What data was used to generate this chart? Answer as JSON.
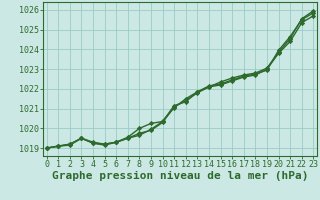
{
  "x_hours": [
    0,
    1,
    2,
    3,
    4,
    5,
    6,
    7,
    8,
    9,
    10,
    11,
    12,
    13,
    14,
    15,
    16,
    17,
    18,
    19,
    20,
    21,
    22,
    23
  ],
  "line1": [
    1019.0,
    1019.1,
    1019.15,
    1019.5,
    1019.25,
    1019.2,
    1019.3,
    1019.5,
    1019.75,
    1019.9,
    1020.3,
    1021.1,
    1021.4,
    1021.8,
    1022.1,
    1022.2,
    1022.4,
    1022.6,
    1022.7,
    1023.0,
    1023.8,
    1024.4,
    1025.35,
    1025.7
  ],
  "line2": [
    1019.0,
    1019.1,
    1019.2,
    1019.5,
    1019.25,
    1019.15,
    1019.3,
    1019.55,
    1020.0,
    1020.25,
    1020.35,
    1021.05,
    1021.5,
    1021.85,
    1022.1,
    1022.35,
    1022.55,
    1022.7,
    1022.8,
    1023.05,
    1023.85,
    1024.55,
    1025.55,
    1025.95
  ],
  "line3": [
    1019.0,
    1019.1,
    1019.2,
    1019.5,
    1019.3,
    1019.2,
    1019.3,
    1019.5,
    1019.65,
    1019.95,
    1020.35,
    1021.15,
    1021.35,
    1021.85,
    1022.15,
    1022.25,
    1022.45,
    1022.65,
    1022.75,
    1022.95,
    1023.95,
    1024.65,
    1025.5,
    1025.85
  ],
  "line_color": "#2d6a2d",
  "bg_color": "#cce8e4",
  "grid_color": "#99ccc6",
  "ylabel_ticks": [
    1019,
    1020,
    1021,
    1022,
    1023,
    1024,
    1025,
    1026
  ],
  "ylim": [
    1018.6,
    1026.4
  ],
  "xlim": [
    -0.3,
    23.3
  ],
  "xlabel": "Graphe pression niveau de la mer (hPa)",
  "xlabel_fontsize": 8,
  "tick_fontsize": 6,
  "marker": "D",
  "marker_size": 2.2,
  "line_width": 1.0
}
